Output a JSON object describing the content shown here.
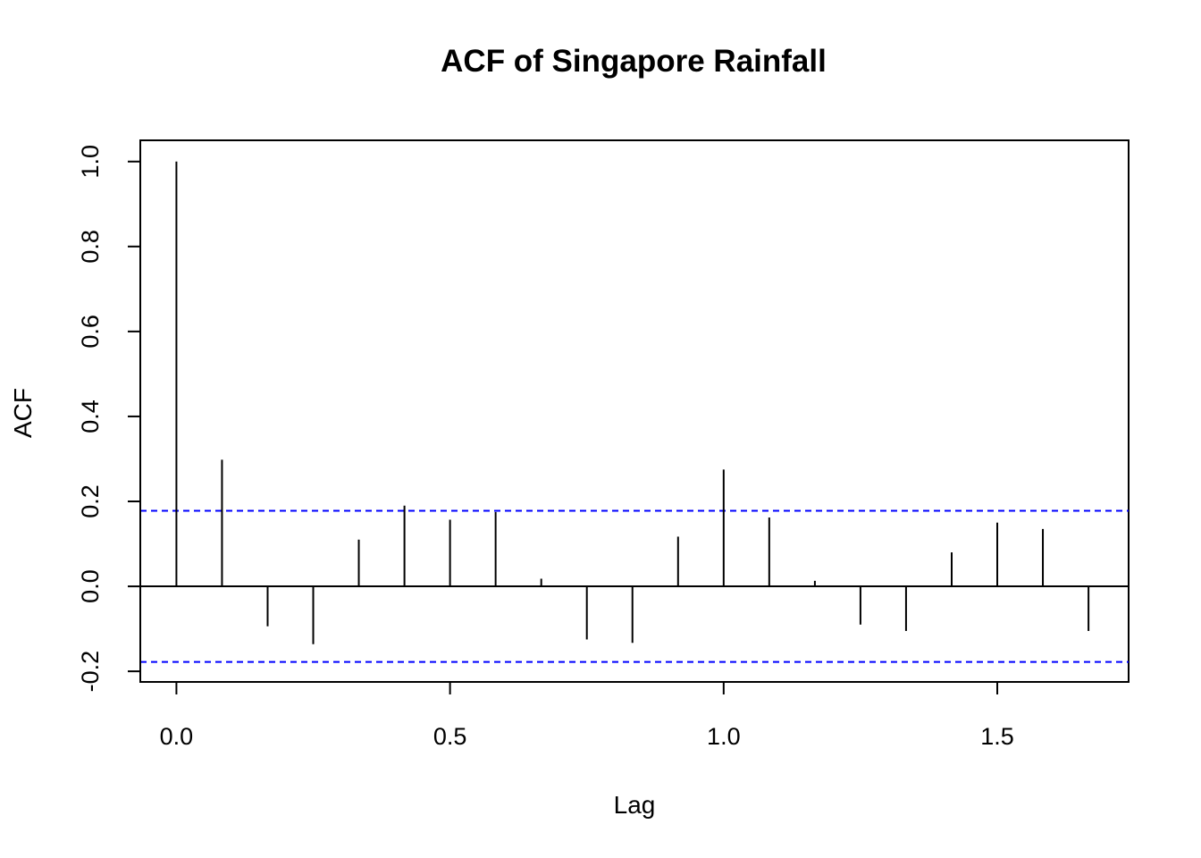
{
  "chart_data": {
    "type": "bar",
    "title": "ACF of Singapore Rainfall",
    "xlabel": "Lag",
    "ylabel": "ACF",
    "xlim": [
      -0.066,
      1.74
    ],
    "ylim": [
      -0.225,
      1.05
    ],
    "x_ticks": [
      0.0,
      0.5,
      1.0,
      1.5
    ],
    "x_tick_labels": [
      "0.0",
      "0.5",
      "1.0",
      "1.5"
    ],
    "y_ticks": [
      -0.2,
      0.0,
      0.2,
      0.4,
      0.6,
      0.8,
      1.0
    ],
    "y_tick_labels": [
      "-0.2",
      "0.0",
      "0.2",
      "0.4",
      "0.6",
      "0.8",
      "1.0"
    ],
    "confidence_bound": 0.178,
    "confidence_color": "#0000ff",
    "line_color": "#000000",
    "series": [
      {
        "x": [
          0.0,
          0.0833,
          0.1667,
          0.25,
          0.3333,
          0.4167,
          0.5,
          0.5833,
          0.6667,
          0.75,
          0.8333,
          0.9167,
          1.0,
          1.0833,
          1.1667,
          1.25,
          1.3333,
          1.4167,
          1.5,
          1.5833,
          1.6667
        ],
        "values": [
          1.0,
          0.298,
          -0.094,
          -0.136,
          0.11,
          0.19,
          0.157,
          0.175,
          0.018,
          -0.125,
          -0.133,
          0.117,
          0.275,
          0.162,
          0.013,
          -0.09,
          -0.105,
          0.08,
          0.15,
          0.135,
          -0.105
        ]
      }
    ]
  }
}
